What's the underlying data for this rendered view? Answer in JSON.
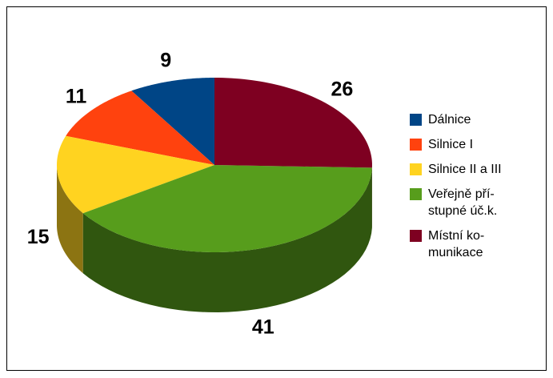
{
  "chart_data": {
    "type": "pie3d",
    "series": [
      {
        "name": "Dálnice",
        "color": "#004586",
        "value": 9
      },
      {
        "name": "Silnice I",
        "color": "#ff420e",
        "value": 11
      },
      {
        "name": "Silnice II a III",
        "color": "#ffd320",
        "value": 15
      },
      {
        "name": "Veřejně pří-\nstupné úč.k.",
        "color": "#579d1c",
        "value": 41
      },
      {
        "name": "Místní ko-\nmunikace",
        "color": "#7e0021",
        "value": 26
      }
    ],
    "legend": "right"
  }
}
